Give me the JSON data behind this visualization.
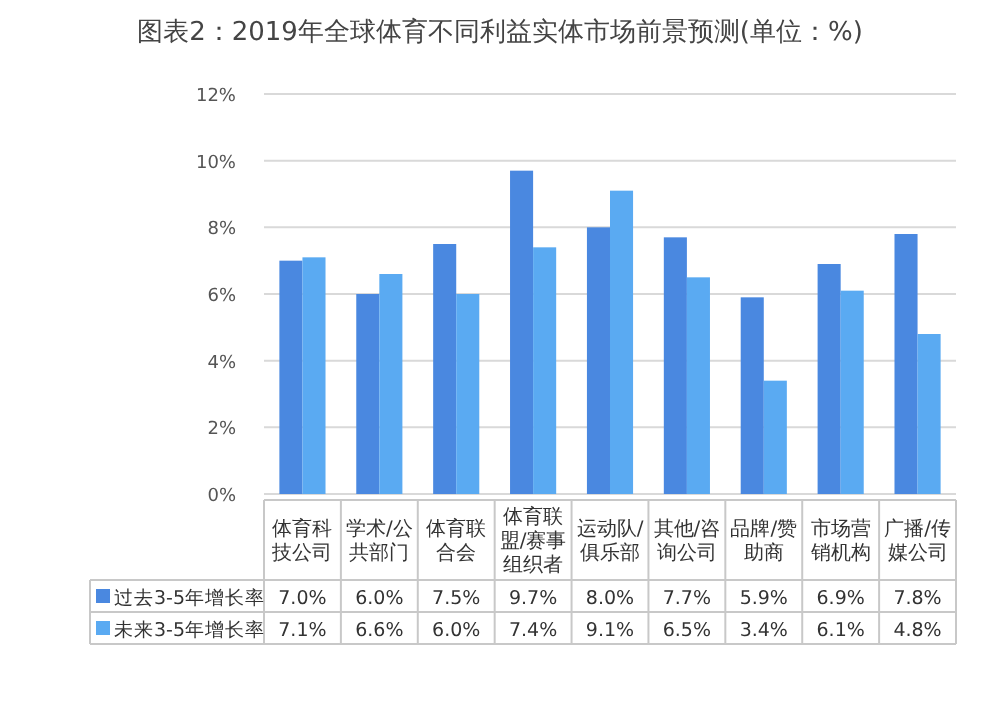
{
  "chart_data": {
    "type": "bar",
    "title": "图表2：2019年全球体育不同利益实体市场前景预测(单位：%)",
    "categories": [
      "体育科技公司",
      "学术/公共部门",
      "体育联合会",
      "体育联盟/赛事组织者",
      "运动队/俱乐部",
      "其他/咨询公司",
      "品牌/赞助商",
      "市场营销机构",
      "广播/传媒公司"
    ],
    "series": [
      {
        "name": "过去3-5年增长率",
        "color": "#4a88e0",
        "values": [
          7.0,
          6.0,
          7.5,
          9.7,
          8.0,
          7.7,
          5.9,
          6.9,
          7.8
        ],
        "value_labels": [
          "7.0%",
          "6.0%",
          "7.5%",
          "9.7%",
          "8.0%",
          "7.7%",
          "5.9%",
          "6.9%",
          "7.8%"
        ]
      },
      {
        "name": "未来3-5年增长率",
        "color": "#5aaaf2",
        "values": [
          7.1,
          6.6,
          6.0,
          7.4,
          9.1,
          6.5,
          3.4,
          6.1,
          4.8
        ],
        "value_labels": [
          "7.1%",
          "6.6%",
          "6.0%",
          "7.4%",
          "9.1%",
          "6.5%",
          "3.4%",
          "6.1%",
          "4.8%"
        ]
      }
    ],
    "ylim": [
      0,
      12
    ],
    "yticks": [
      {
        "value": 0,
        "label": "0%"
      },
      {
        "value": 2,
        "label": "2%"
      },
      {
        "value": 4,
        "label": "4%"
      },
      {
        "value": 6,
        "label": "6%"
      },
      {
        "value": 8,
        "label": "8%"
      },
      {
        "value": 10,
        "label": "10%"
      },
      {
        "value": 12,
        "label": "12%"
      }
    ],
    "grid": "y",
    "legend": "bottom"
  }
}
